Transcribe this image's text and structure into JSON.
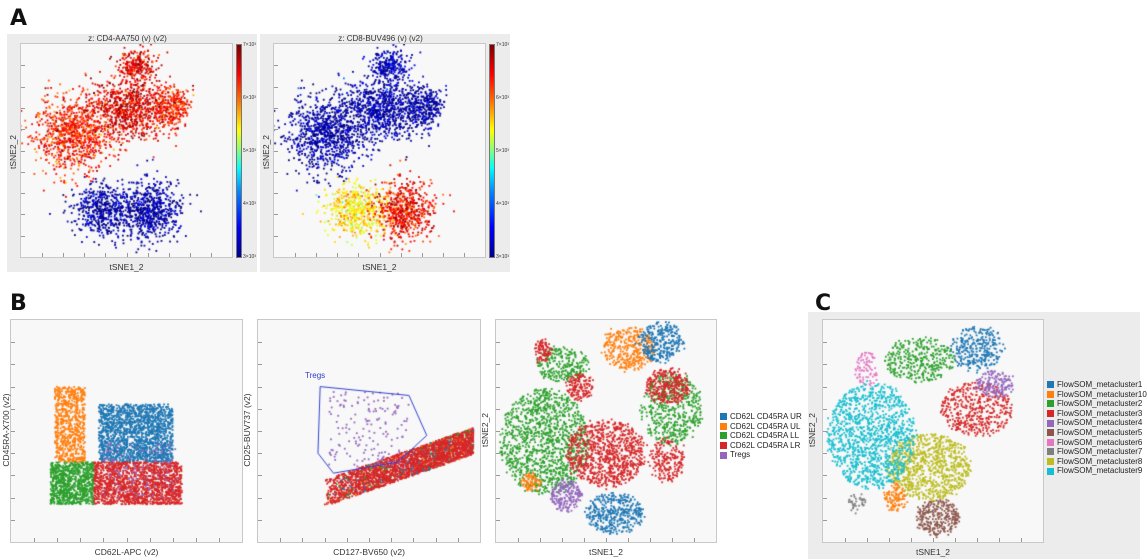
{
  "panels": {
    "a": "A",
    "b": "B",
    "c": "C"
  },
  "panel_a": {
    "left": {
      "title": "z: CD4-AA750 (v) (v2)",
      "xlabel": "tSNE1_2",
      "ylabel": "tSNE2_2"
    },
    "right": {
      "title": "z: CD8-BUV496 (v) (v2)",
      "xlabel": "tSNE1_2",
      "ylabel": "tSNE2_2"
    },
    "colorbar_ticks": [
      "7×10³",
      "6×10³",
      "5×10³",
      "4×10³",
      "3×10³"
    ]
  },
  "panel_b": {
    "plot1": {
      "xlabel": "CD62L-APC (v2)",
      "ylabel": "CD45RA-X700 (v2)"
    },
    "plot2": {
      "xlabel": "CD127-BV650 (v2)",
      "ylabel": "CD25-BUV737 (v2)",
      "gate_label": "Tregs"
    },
    "plot3": {
      "xlabel": "tSNE1_2",
      "ylabel": "tSNE2_2"
    },
    "legend": [
      {
        "label": "CD62L CD45RA UR",
        "color": "#1f77b4"
      },
      {
        "label": "CD62L CD45RA UL",
        "color": "#ff7f0e"
      },
      {
        "label": "CD62L CD45RA LL",
        "color": "#2ca02c"
      },
      {
        "label": "CD62L CD45RA LR",
        "color": "#d62728"
      },
      {
        "label": "Tregs",
        "color": "#9467bd"
      }
    ]
  },
  "panel_c": {
    "xlabel": "tSNE1_2",
    "ylabel": "tSNE2_2",
    "legend": [
      {
        "label": "FlowSOM_metacluster1",
        "color": "#1f77b4"
      },
      {
        "label": "FlowSOM_metacluster10",
        "color": "#ff7f0e"
      },
      {
        "label": "FlowSOM_metacluster2",
        "color": "#2ca02c"
      },
      {
        "label": "FlowSOM_metacluster3",
        "color": "#d62728"
      },
      {
        "label": "FlowSOM_metacluster4",
        "color": "#9467bd"
      },
      {
        "label": "FlowSOM_metacluster5",
        "color": "#8c564b"
      },
      {
        "label": "FlowSOM_metacluster6",
        "color": "#e377c2"
      },
      {
        "label": "FlowSOM_metacluster7",
        "color": "#7f7f7f"
      },
      {
        "label": "FlowSOM_metacluster8",
        "color": "#bcbd22"
      },
      {
        "label": "FlowSOM_metacluster9",
        "color": "#17becf"
      }
    ]
  },
  "chart_data": [
    {
      "type": "scatter",
      "title": "z: CD4-AA750 (v) (v2)",
      "xlabel": "tSNE1_2",
      "ylabel": "tSNE2_2",
      "color_scale": {
        "min": 3000,
        "max": 7000,
        "ticks": [
          "3×10³",
          "4×10³",
          "5×10³",
          "6×10³",
          "7×10³"
        ]
      },
      "clusters": [
        {
          "cx": 0.4,
          "cy": 0.78,
          "rx": 0.15,
          "ry": 0.12,
          "n": 550,
          "z": 3100
        },
        {
          "cx": 0.62,
          "cy": 0.78,
          "rx": 0.13,
          "ry": 0.14,
          "n": 600,
          "z": 3100
        },
        {
          "cx": 0.25,
          "cy": 0.42,
          "rx": 0.18,
          "ry": 0.18,
          "n": 900,
          "z": 6400
        },
        {
          "cx": 0.52,
          "cy": 0.3,
          "rx": 0.18,
          "ry": 0.14,
          "n": 800,
          "z": 6600
        },
        {
          "cx": 0.72,
          "cy": 0.3,
          "rx": 0.08,
          "ry": 0.1,
          "n": 300,
          "z": 6400
        },
        {
          "cx": 0.55,
          "cy": 0.1,
          "rx": 0.09,
          "ry": 0.07,
          "n": 250,
          "z": 6600
        }
      ]
    },
    {
      "type": "scatter",
      "title": "z: CD8-BUV496 (v) (v2)",
      "xlabel": "tSNE1_2",
      "ylabel": "tSNE2_2",
      "color_scale": {
        "min": 3000,
        "max": 7000,
        "ticks": [
          "3×10³",
          "4×10³",
          "5×10³",
          "6×10³",
          "7×10³"
        ]
      },
      "clusters": [
        {
          "cx": 0.4,
          "cy": 0.78,
          "rx": 0.15,
          "ry": 0.12,
          "n": 550,
          "z": 5600
        },
        {
          "cx": 0.62,
          "cy": 0.78,
          "rx": 0.13,
          "ry": 0.14,
          "n": 600,
          "z": 6500
        },
        {
          "cx": 0.25,
          "cy": 0.42,
          "rx": 0.18,
          "ry": 0.18,
          "n": 900,
          "z": 3100
        },
        {
          "cx": 0.52,
          "cy": 0.3,
          "rx": 0.18,
          "ry": 0.14,
          "n": 800,
          "z": 3100
        },
        {
          "cx": 0.72,
          "cy": 0.3,
          "rx": 0.08,
          "ry": 0.1,
          "n": 300,
          "z": 3100
        },
        {
          "cx": 0.55,
          "cy": 0.1,
          "rx": 0.09,
          "ry": 0.07,
          "n": 250,
          "z": 3200
        }
      ]
    },
    {
      "type": "scatter",
      "xlabel": "CD62L-APC (v2)",
      "ylabel": "CD45RA-X700 (v2)",
      "series": [
        {
          "name": "CD62L CD45RA UR",
          "color": "#1f77b4",
          "x": [
            0.38,
            0.7
          ],
          "y": [
            0.36,
            0.62
          ]
        },
        {
          "name": "CD62L CD45RA UL",
          "color": "#ff7f0e",
          "x": [
            0.19,
            0.32
          ],
          "y": [
            0.36,
            0.7
          ]
        },
        {
          "name": "CD62L CD45RA LL",
          "color": "#2ca02c",
          "x": [
            0.17,
            0.36
          ],
          "y": [
            0.17,
            0.36
          ]
        },
        {
          "name": "CD62L CD45RA LR",
          "color": "#d62728",
          "x": [
            0.36,
            0.74
          ],
          "y": [
            0.17,
            0.36
          ]
        },
        {
          "name": "Tregs",
          "color": "#9467bd",
          "x": [
            0.4,
            0.72
          ],
          "y": [
            0.2,
            0.45
          ]
        }
      ]
    },
    {
      "type": "scatter",
      "xlabel": "CD127-BV650 (v2)",
      "ylabel": "CD25-BUV737 (v2)",
      "gate": {
        "name": "Tregs",
        "polygon": [
          [
            0.28,
            0.7
          ],
          [
            0.68,
            0.66
          ],
          [
            0.76,
            0.48
          ],
          [
            0.63,
            0.36
          ],
          [
            0.34,
            0.31
          ],
          [
            0.27,
            0.4
          ]
        ]
      },
      "series": [
        {
          "name": "Tregs",
          "color": "#9467bd",
          "x": [
            0.32,
            0.68
          ],
          "y": [
            0.34,
            0.68
          ]
        },
        {
          "name": "CD62L CD45RA LR",
          "color": "#d62728",
          "x": [
            0.3,
            0.97
          ],
          "y": [
            0.14,
            0.4
          ]
        }
      ]
    },
    {
      "type": "scatter",
      "xlabel": "tSNE1_2",
      "ylabel": "tSNE2_2",
      "series": [
        {
          "name": "CD62L CD45RA UR",
          "color": "#1f77b4"
        },
        {
          "name": "CD62L CD45RA UL",
          "color": "#ff7f0e"
        },
        {
          "name": "CD62L CD45RA LL",
          "color": "#2ca02c"
        },
        {
          "name": "CD62L CD45RA LR",
          "color": "#d62728"
        },
        {
          "name": "Tregs",
          "color": "#9467bd"
        }
      ]
    },
    {
      "type": "scatter",
      "xlabel": "tSNE1_2",
      "ylabel": "tSNE2_2",
      "series": [
        {
          "name": "FlowSOM_metacluster1",
          "color": "#1f77b4"
        },
        {
          "name": "FlowSOM_metacluster10",
          "color": "#ff7f0e"
        },
        {
          "name": "FlowSOM_metacluster2",
          "color": "#2ca02c"
        },
        {
          "name": "FlowSOM_metacluster3",
          "color": "#d62728"
        },
        {
          "name": "FlowSOM_metacluster4",
          "color": "#9467bd"
        },
        {
          "name": "FlowSOM_metacluster5",
          "color": "#8c564b"
        },
        {
          "name": "FlowSOM_metacluster6",
          "color": "#e377c2"
        },
        {
          "name": "FlowSOM_metacluster7",
          "color": "#7f7f7f"
        },
        {
          "name": "FlowSOM_metacluster8",
          "color": "#bcbd22"
        },
        {
          "name": "FlowSOM_metacluster9",
          "color": "#17becf"
        }
      ]
    }
  ]
}
